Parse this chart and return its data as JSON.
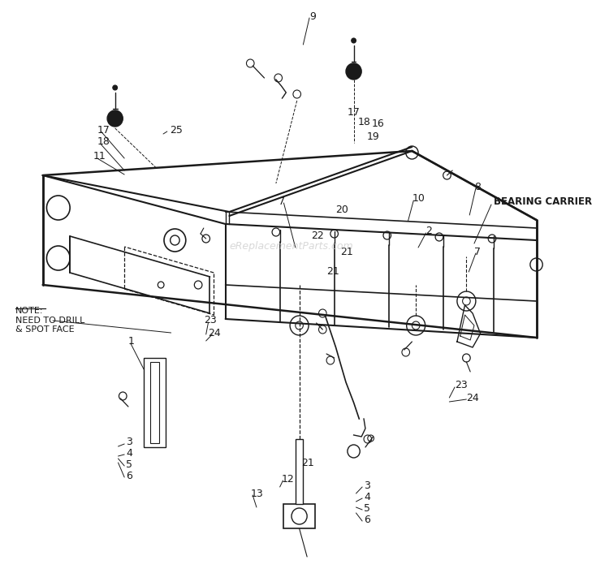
{
  "bg_color": "#ffffff",
  "line_color": "#1a1a1a",
  "text_color": "#1a1a1a",
  "watermark": "eReplacementParts.com",
  "watermark_color": "#c8c8c8",
  "bearing_carrier_label": "BEARING CARRIER",
  "note_text": "NOTE:\nNEED TO DRILL\n& SPOT FACE"
}
